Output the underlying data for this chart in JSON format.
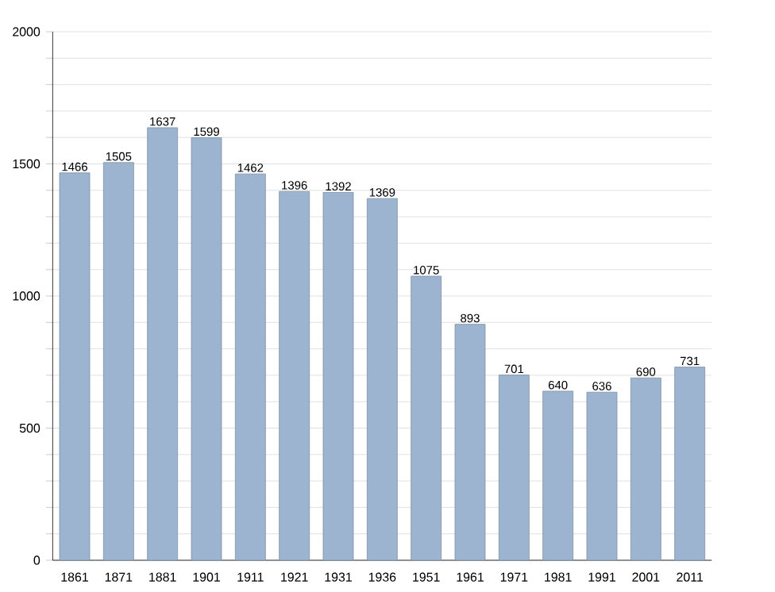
{
  "chart_data": {
    "type": "bar",
    "categories": [
      "1861",
      "1871",
      "1881",
      "1901",
      "1911",
      "1921",
      "1931",
      "1936",
      "1951",
      "1961",
      "1971",
      "1981",
      "1991",
      "2001",
      "2011"
    ],
    "values": [
      1466,
      1505,
      1637,
      1599,
      1462,
      1396,
      1392,
      1369,
      1075,
      893,
      701,
      640,
      636,
      690,
      731
    ],
    "color": "#9cb4cf",
    "ylim": [
      0,
      2000
    ],
    "yticks": [
      0,
      {
        "value": 100,
        "label": null
      },
      {
        "value": 200,
        "label": null
      },
      {
        "value": 300,
        "label": null
      },
      {
        "value": 400,
        "label": null
      },
      500,
      {
        "value": 600,
        "label": null
      },
      {
        "value": 700,
        "label": null
      },
      {
        "value": 800,
        "label": null
      },
      {
        "value": 900,
        "label": null
      },
      1000,
      {
        "value": 1100,
        "label": null
      },
      {
        "value": 1200,
        "label": null
      },
      {
        "value": 1300,
        "label": null
      },
      {
        "value": 1400,
        "label": null
      },
      1500,
      {
        "value": 1600,
        "label": null
      },
      {
        "value": 1700,
        "label": null
      },
      {
        "value": 1800,
        "label": null
      },
      {
        "value": 1900,
        "label": null
      },
      2000
    ],
    "grid": "y",
    "data_labels": true
  }
}
